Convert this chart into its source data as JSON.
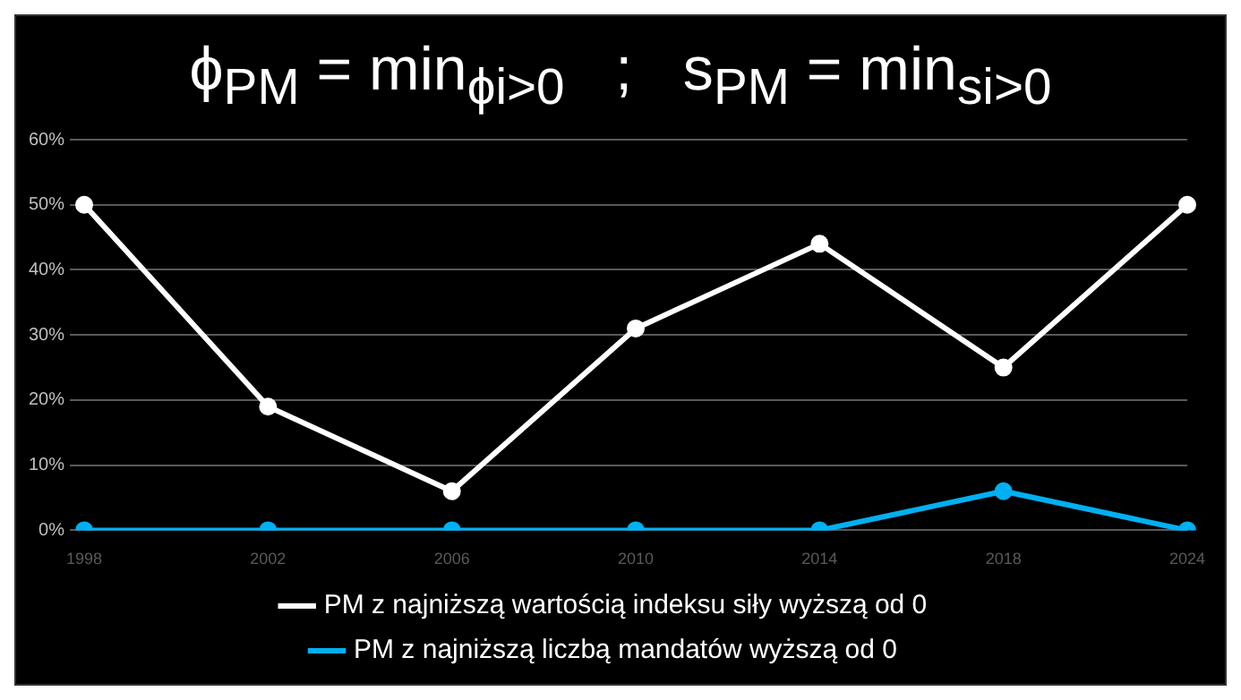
{
  "chart_data": {
    "type": "line",
    "title": "ϕ$_{PM}$ = min$_{ϕi>0}$   ;   s$_{PM}$ = min$_{si>0}$",
    "categories": [
      "1998",
      "2002",
      "2006",
      "2010",
      "2014",
      "2018",
      "2024"
    ],
    "series": [
      {
        "name": "PM z najniższą wartością indeksu siły wyższą od 0",
        "color": "#ffffff",
        "values": [
          50,
          19,
          6,
          31,
          44,
          25,
          50
        ]
      },
      {
        "name": "PM z najniższą liczbą mandatów wyższą od 0",
        "color": "#00b0f0",
        "values": [
          0,
          0,
          0,
          0,
          0,
          6,
          0
        ]
      }
    ],
    "ylim": [
      0,
      60
    ],
    "yticks": [
      {
        "value": 0,
        "label": "0%"
      },
      {
        "value": 10,
        "label": "10%"
      },
      {
        "value": 20,
        "label": "20%"
      },
      {
        "value": 30,
        "label": "30%"
      },
      {
        "value": 40,
        "label": "40%"
      },
      {
        "value": 50,
        "label": "50%"
      },
      {
        "value": 60,
        "label": "60%"
      }
    ],
    "grid": "y",
    "legend": "bottom",
    "marker": "circle",
    "line_style": "solid"
  }
}
